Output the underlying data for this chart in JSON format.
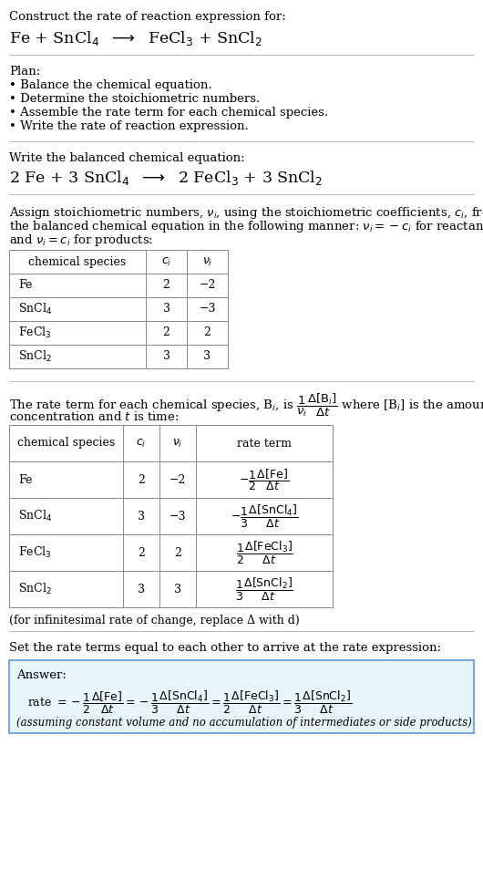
{
  "bg_color": "#ffffff",
  "text_color": "#000000",
  "title_line1": "Construct the rate of reaction expression for:",
  "plan_header": "Plan:",
  "plan_items": [
    "• Balance the chemical equation.",
    "• Determine the stoichiometric numbers.",
    "• Assemble the rate term for each chemical species.",
    "• Write the rate of reaction expression."
  ],
  "balanced_header": "Write the balanced chemical equation:",
  "set_rate_text": "Set the rate terms equal to each other to arrive at the rate expression:",
  "answer_label": "Answer:",
  "answer_box_color": "#e8f4fb",
  "answer_box_border": "#5b9bd5",
  "answer_note": "(assuming constant volume and no accumulation of intermediates or side products)",
  "infinitesimal_note": "(for infinitesimal rate of change, replace Δ with d)",
  "sep_color": "#bbbbbb",
  "table_line_color": "#888888"
}
